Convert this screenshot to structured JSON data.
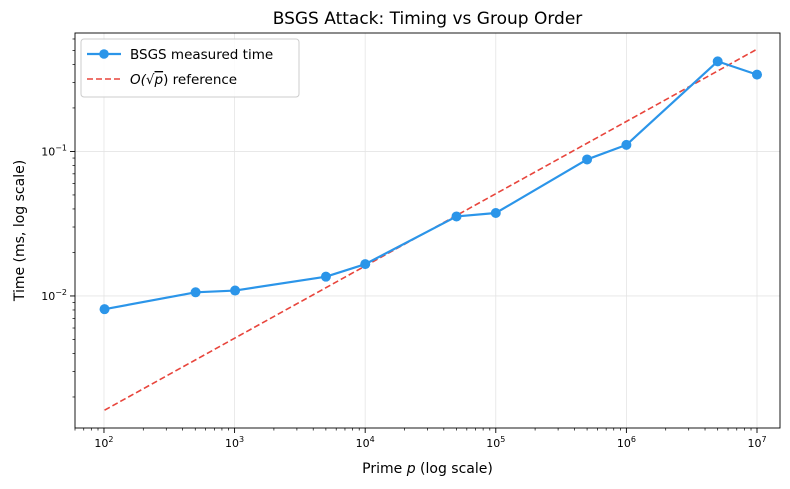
{
  "chart_data": {
    "type": "line",
    "title": "BSGS Attack: Timing vs Group Order",
    "xlabel": "Prime p (log scale)",
    "xlabel_prefix": "Prime ",
    "xlabel_var": "p",
    "xlabel_suffix": " (log scale)",
    "ylabel": "Time (ms, log scale)",
    "xscale": "log",
    "yscale": "log",
    "xlim": [
      60,
      15000000
    ],
    "ylim": [
      0.00122,
      0.66
    ],
    "grid": true,
    "legend_position": "top-left",
    "x_ticks": [
      {
        "value": 100,
        "base": "10",
        "exp": "2"
      },
      {
        "value": 1000,
        "base": "10",
        "exp": "3"
      },
      {
        "value": 10000,
        "base": "10",
        "exp": "4"
      },
      {
        "value": 100000,
        "base": "10",
        "exp": "5"
      },
      {
        "value": 1000000,
        "base": "10",
        "exp": "6"
      },
      {
        "value": 10000000,
        "base": "10",
        "exp": "7"
      }
    ],
    "y_ticks": [
      {
        "value": 0.01,
        "base": "10",
        "exp": "−2"
      },
      {
        "value": 0.1,
        "base": "10",
        "exp": "−1"
      }
    ],
    "series": [
      {
        "name": "BSGS measured time",
        "style": "solid-marker",
        "color": "#2b95e9",
        "x": [
          101,
          503,
          1009,
          5003,
          10007,
          50021,
          100003,
          500009,
          1000003,
          5000011,
          10000019
        ],
        "y": [
          0.0081,
          0.0106,
          0.0109,
          0.0136,
          0.0166,
          0.0355,
          0.0375,
          0.088,
          0.111,
          0.42,
          0.34
        ]
      },
      {
        "name": "O(√p) reference",
        "legend_prefix": "O(",
        "legend_radicand": "p",
        "legend_suffix": ") reference",
        "style": "dashed",
        "color": "#e8453c",
        "x": [
          101,
          10000019
        ],
        "y": [
          0.00162,
          0.51
        ]
      }
    ]
  }
}
